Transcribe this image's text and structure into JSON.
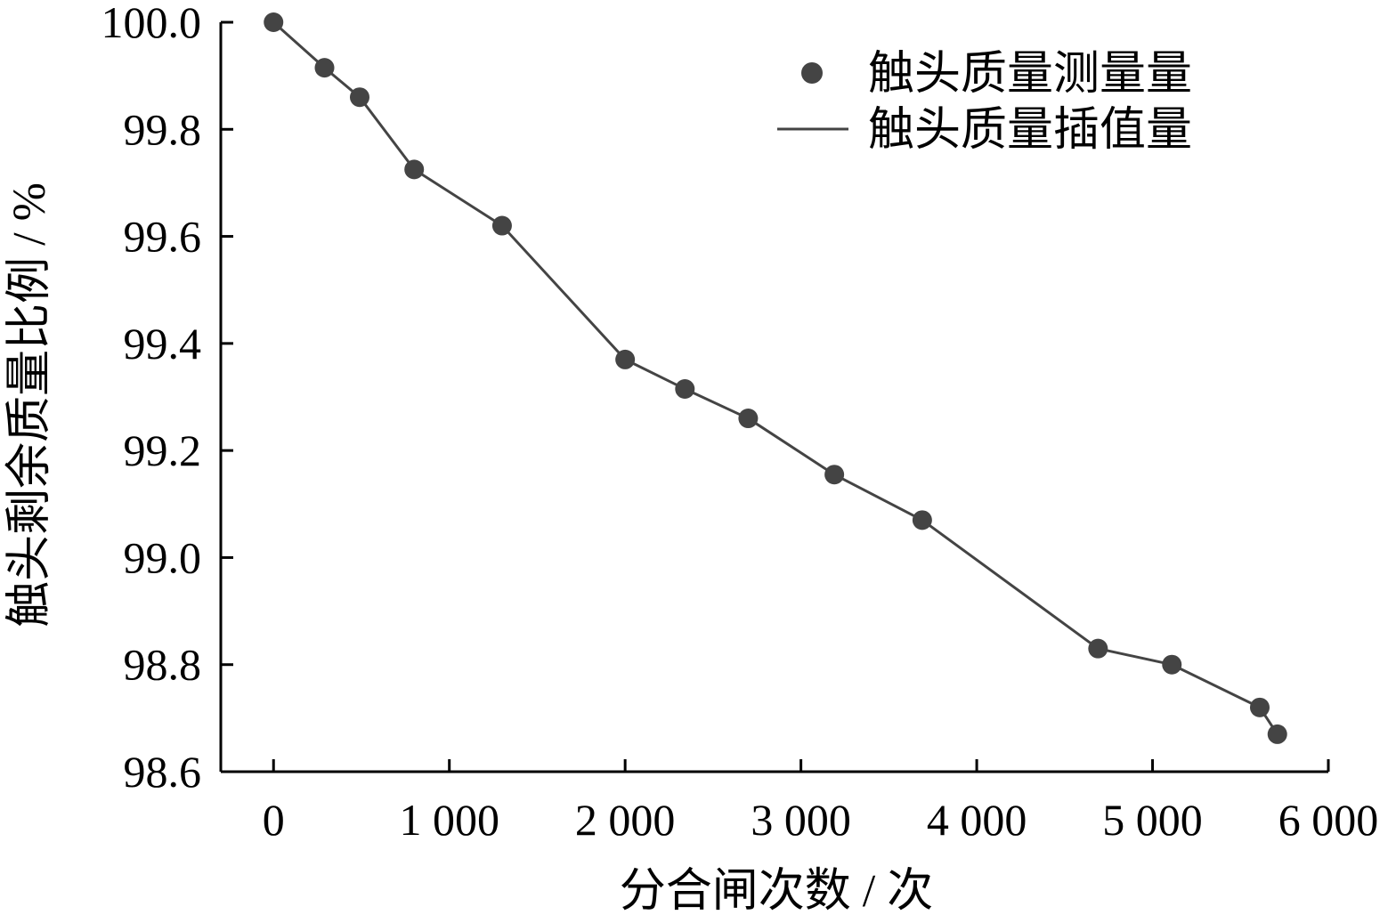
{
  "chart_data": {
    "type": "line",
    "title": "",
    "xlabel": "分合闸次数 / 次",
    "ylabel": "触头剩余质量比例 / %",
    "xlim": [
      -300,
      6000
    ],
    "ylim": [
      98.6,
      100.0
    ],
    "x_ticks": [
      0,
      1000,
      2000,
      3000,
      4000,
      5000,
      6000
    ],
    "x_tick_labels": [
      "0",
      "1 000",
      "2 000",
      "3 000",
      "4 000",
      "5 000",
      "6 000"
    ],
    "y_ticks": [
      98.6,
      98.8,
      99.0,
      99.2,
      99.4,
      99.6,
      99.8,
      100.0
    ],
    "y_tick_labels": [
      "98.6",
      "98.8",
      "99.0",
      "99.2",
      "99.4",
      "99.6",
      "99.8",
      "100.0"
    ],
    "grid": false,
    "legend_position": "top-right",
    "series": [
      {
        "name": "触头质量测量量",
        "kind": "scatter",
        "color": "#444444",
        "x": [
          0,
          290,
          490,
          800,
          1300,
          2000,
          2340,
          2700,
          3190,
          3690,
          4690,
          5110,
          5610,
          5710
        ],
        "y": [
          100.0,
          99.915,
          99.86,
          99.725,
          99.62,
          99.37,
          99.315,
          99.26,
          99.155,
          99.07,
          98.83,
          98.8,
          98.72,
          98.67
        ]
      },
      {
        "name": "触头质量插值量",
        "kind": "line",
        "color": "#444444",
        "x": [
          0,
          290,
          490,
          800,
          1300,
          2000,
          2340,
          2700,
          3190,
          3690,
          4690,
          5110,
          5610,
          5710
        ],
        "y": [
          100.0,
          99.915,
          99.86,
          99.725,
          99.62,
          99.37,
          99.315,
          99.26,
          99.155,
          99.07,
          98.83,
          98.8,
          98.72,
          98.67
        ]
      }
    ]
  }
}
